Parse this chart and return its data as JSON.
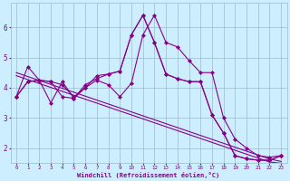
{
  "xlabel": "Windchill (Refroidissement éolien,°C)",
  "hours": [
    0,
    1,
    2,
    3,
    4,
    5,
    6,
    7,
    8,
    9,
    10,
    11,
    12,
    13,
    14,
    15,
    16,
    17,
    18,
    19,
    20,
    21,
    22,
    23
  ],
  "line1": [
    3.7,
    4.2,
    4.25,
    4.2,
    3.7,
    3.65,
    4.1,
    4.3,
    4.45,
    4.55,
    5.75,
    6.4,
    5.5,
    4.45,
    4.3,
    4.2,
    4.2,
    3.1,
    2.5,
    1.75,
    1.65,
    1.6,
    1.6,
    1.75
  ],
  "line2": [
    3.7,
    4.7,
    4.25,
    4.2,
    4.1,
    3.7,
    4.0,
    4.25,
    4.1,
    3.7,
    4.15,
    5.75,
    6.4,
    5.5,
    5.35,
    4.9,
    4.5,
    4.5,
    3.0,
    2.3,
    2.0,
    1.75,
    1.7,
    1.75
  ],
  "line3": [
    3.7,
    4.2,
    4.25,
    3.5,
    4.2,
    3.65,
    4.0,
    4.4,
    4.45,
    4.55,
    5.75,
    6.4,
    5.5,
    4.45,
    4.3,
    4.2,
    4.2,
    3.1,
    2.5,
    1.75,
    1.65,
    1.6,
    1.6,
    1.75
  ],
  "trend1": [
    4.4,
    4.27,
    4.14,
    4.01,
    3.88,
    3.75,
    3.62,
    3.49,
    3.36,
    3.23,
    3.1,
    2.97,
    2.84,
    2.71,
    2.58,
    2.45,
    2.32,
    2.19,
    2.06,
    1.93,
    1.8,
    1.67,
    1.54,
    1.5
  ],
  "trend2": [
    4.5,
    4.37,
    4.24,
    4.11,
    3.98,
    3.85,
    3.72,
    3.59,
    3.46,
    3.33,
    3.2,
    3.07,
    2.94,
    2.81,
    2.68,
    2.55,
    2.42,
    2.29,
    2.16,
    2.03,
    1.9,
    1.77,
    1.64,
    1.56
  ],
  "line_color": "#880088",
  "bg_color": "#cceeff",
  "grid_color": "#99bbcc",
  "ylim": [
    1.5,
    6.8
  ],
  "yticks": [
    2,
    3,
    4,
    5,
    6
  ],
  "xticks": [
    0,
    1,
    2,
    3,
    4,
    5,
    6,
    7,
    8,
    9,
    10,
    11,
    12,
    13,
    14,
    15,
    16,
    17,
    18,
    19,
    20,
    21,
    22,
    23
  ],
  "xlabels": [
    "0",
    "1",
    "2",
    "3",
    "4",
    "5",
    "6",
    "7",
    "8",
    "9",
    "10",
    "11",
    "12",
    "13",
    "14",
    "15",
    "16",
    "17",
    "18",
    "19",
    "20",
    "21",
    "22",
    "23"
  ]
}
